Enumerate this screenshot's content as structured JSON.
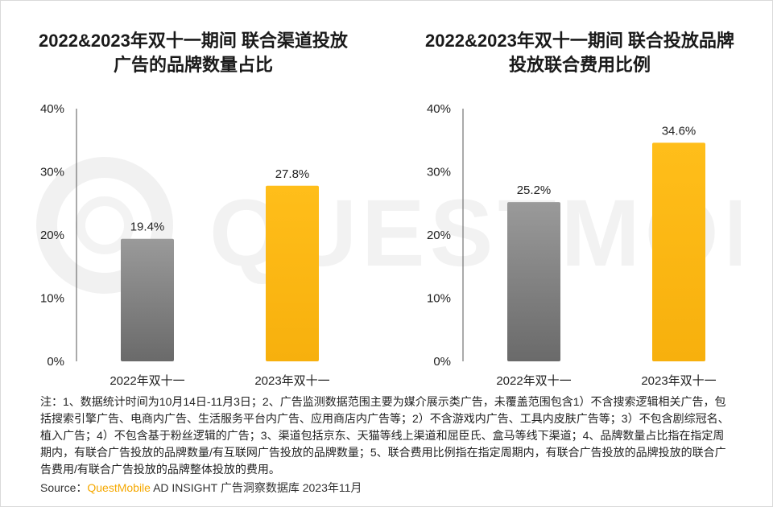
{
  "watermark": "QUESTMOBILE",
  "charts": [
    {
      "title_line1": "2022&2023年双十一期间 联合渠道投放",
      "title_line2": "广告的品牌数量占比"
    },
    {
      "title_line1": "2022&2023年双十一期间 联合投放品牌",
      "title_line2": "投放联合费用比例"
    }
  ],
  "chart_data": [
    {
      "type": "bar",
      "title": "2022&2023年双十一期间 联合渠道投放广告的品牌数量占比",
      "categories": [
        "2022年双十一",
        "2023年双十一"
      ],
      "values": [
        19.4,
        27.8
      ],
      "value_labels": [
        "19.4%",
        "27.8%"
      ],
      "ylim": [
        0,
        40
      ],
      "yticks": [
        "0%",
        "10%",
        "20%",
        "30%",
        "40%"
      ],
      "ytick_values": [
        0,
        10,
        20,
        30,
        40
      ],
      "colors": [
        "#808080",
        "#fbb814"
      ],
      "xlabel": "",
      "ylabel": ""
    },
    {
      "type": "bar",
      "title": "2022&2023年双十一期间 联合投放品牌投放联合费用比例",
      "categories": [
        "2022年双十一",
        "2023年双十一"
      ],
      "values": [
        25.2,
        34.6
      ],
      "value_labels": [
        "25.2%",
        "34.6%"
      ],
      "ylim": [
        0,
        40
      ],
      "yticks": [
        "0%",
        "10%",
        "20%",
        "30%",
        "40%"
      ],
      "ytick_values": [
        0,
        10,
        20,
        30,
        40
      ],
      "colors": [
        "#808080",
        "#fbb814"
      ],
      "xlabel": "",
      "ylabel": ""
    }
  ],
  "note": "注：1、数据统计时间为10月14日-11月3日；2、广告监测数据范围主要为媒介展示类广告，未覆盖范围包含1）不含搜索逻辑相关广告，包括搜索引擎广告、电商内广告、生活服务平台内广告、应用商店内广告等；2）不含游戏内广告、工具内皮肤广告等；3）不包含剧综冠名、植入广告；4）不包含基于粉丝逻辑的广告；3、渠道包括京东、天猫等线上渠道和屈臣氏、盒马等线下渠道；4、品牌数量占比指在指定周期内，有联合广告投放的品牌数量/有互联网广告投放的品牌数量；5、联合费用比例指在指定周期内，有联合广告投放的品牌投放的联合广告费用/有联合广告投放的品牌整体投放的费用。",
  "source": {
    "label": "Source：",
    "brand": "QuestMobile",
    "rest": " AD INSIGHT 广告洞察数据库 2023年11月"
  }
}
